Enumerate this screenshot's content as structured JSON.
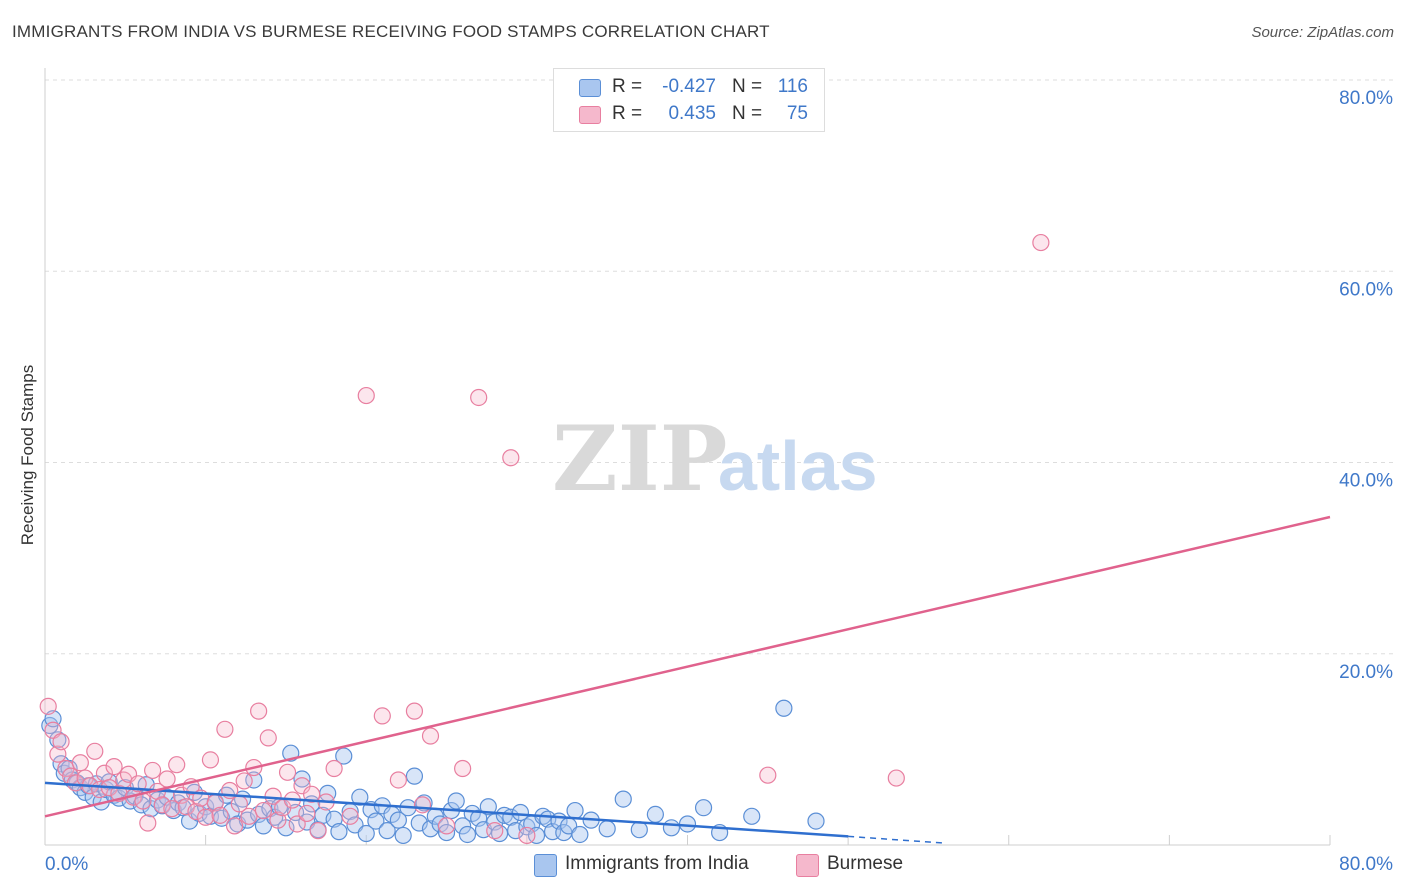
{
  "title": "IMMIGRANTS FROM INDIA VS BURMESE RECEIVING FOOD STAMPS CORRELATION CHART",
  "source": "Source: ZipAtlas.com",
  "stats": {
    "series1": {
      "r_label": "R =",
      "r_value": "-0.427",
      "n_label": "N =",
      "n_value": "116"
    },
    "series2": {
      "r_label": "R =",
      "r_value": "0.435",
      "n_label": "N =",
      "n_value": "75"
    }
  },
  "legend": {
    "series1": "Immigrants from India",
    "series2": "Burmese"
  },
  "colors": {
    "blue_fill": "#a9c6ef",
    "blue_stroke": "#5b8fd6",
    "blue_line": "#2f6fcf",
    "pink_fill": "#f5b8cc",
    "pink_stroke": "#e87fa0",
    "pink_line": "#e0628d",
    "tick_label": "#3f78c9",
    "grid": "#dddddd"
  },
  "chart_data": {
    "type": "scatter",
    "title": "IMMIGRANTS FROM INDIA VS BURMESE RECEIVING FOOD STAMPS CORRELATION CHART",
    "xlabel": "",
    "ylabel": "Receiving Food Stamps",
    "xlim": [
      0,
      80
    ],
    "ylim": [
      0,
      80
    ],
    "x_tick_labels": [
      "0.0%",
      "80.0%"
    ],
    "y_tick_labels": [
      "20.0%",
      "40.0%",
      "60.0%",
      "80.0%"
    ],
    "y_ticks": [
      20,
      40,
      60,
      80
    ],
    "grid": true,
    "legend_position": "bottom-center",
    "watermark": "ZIPatlas",
    "series": [
      {
        "name": "Immigrants from India",
        "color": "#a9c6ef",
        "trend": {
          "x": [
            0,
            50
          ],
          "y": [
            6.5,
            0.9
          ],
          "dashed_to": [
            56,
            0.2
          ]
        },
        "points": [
          [
            0.3,
            12.5
          ],
          [
            0.5,
            13.2
          ],
          [
            0.8,
            11.0
          ],
          [
            1.0,
            8.5
          ],
          [
            1.2,
            7.5
          ],
          [
            1.5,
            8.0
          ],
          [
            1.7,
            6.8
          ],
          [
            2.0,
            6.5
          ],
          [
            2.2,
            6.0
          ],
          [
            2.5,
            5.5
          ],
          [
            2.7,
            6.2
          ],
          [
            3.0,
            5.0
          ],
          [
            3.2,
            6.4
          ],
          [
            3.5,
            4.5
          ],
          [
            3.8,
            5.8
          ],
          [
            4.0,
            6.6
          ],
          [
            4.3,
            5.2
          ],
          [
            4.6,
            4.9
          ],
          [
            5.0,
            6.0
          ],
          [
            5.3,
            4.6
          ],
          [
            5.6,
            5.1
          ],
          [
            6.0,
            4.2
          ],
          [
            6.3,
            6.3
          ],
          [
            6.6,
            3.8
          ],
          [
            7.0,
            4.7
          ],
          [
            7.3,
            4.1
          ],
          [
            7.6,
            5.0
          ],
          [
            8.0,
            3.6
          ],
          [
            8.3,
            4.4
          ],
          [
            8.6,
            3.9
          ],
          [
            9.0,
            2.5
          ],
          [
            9.3,
            5.5
          ],
          [
            9.6,
            3.3
          ],
          [
            10.0,
            4.0
          ],
          [
            10.3,
            3.0
          ],
          [
            10.6,
            4.5
          ],
          [
            11.0,
            2.8
          ],
          [
            11.3,
            5.2
          ],
          [
            11.6,
            3.5
          ],
          [
            12.0,
            2.2
          ],
          [
            12.3,
            4.8
          ],
          [
            12.6,
            2.6
          ],
          [
            13.0,
            6.8
          ],
          [
            13.3,
            3.2
          ],
          [
            13.6,
            2.0
          ],
          [
            14.0,
            3.8
          ],
          [
            14.3,
            2.9
          ],
          [
            14.6,
            4.0
          ],
          [
            15.0,
            1.8
          ],
          [
            15.3,
            9.6
          ],
          [
            15.6,
            3.4
          ],
          [
            16.0,
            6.9
          ],
          [
            16.3,
            2.4
          ],
          [
            16.6,
            4.3
          ],
          [
            17.0,
            1.6
          ],
          [
            17.3,
            3.1
          ],
          [
            17.6,
            5.4
          ],
          [
            18.0,
            2.7
          ],
          [
            18.3,
            1.4
          ],
          [
            18.6,
            9.3
          ],
          [
            19.0,
            3.5
          ],
          [
            19.3,
            2.1
          ],
          [
            19.6,
            5.0
          ],
          [
            20.0,
            1.2
          ],
          [
            20.3,
            3.7
          ],
          [
            20.6,
            2.5
          ],
          [
            21.0,
            4.1
          ],
          [
            21.3,
            1.5
          ],
          [
            21.6,
            3.2
          ],
          [
            22.0,
            2.6
          ],
          [
            22.3,
            1.0
          ],
          [
            22.6,
            3.9
          ],
          [
            23.0,
            7.2
          ],
          [
            23.3,
            2.3
          ],
          [
            23.6,
            4.4
          ],
          [
            24.0,
            1.7
          ],
          [
            24.3,
            3.0
          ],
          [
            24.6,
            2.2
          ],
          [
            25.0,
            1.3
          ],
          [
            25.3,
            3.6
          ],
          [
            25.6,
            4.6
          ],
          [
            26.0,
            2.0
          ],
          [
            26.3,
            1.1
          ],
          [
            26.6,
            3.3
          ],
          [
            27.0,
            2.8
          ],
          [
            27.3,
            1.6
          ],
          [
            27.6,
            4.0
          ],
          [
            28.0,
            2.4
          ],
          [
            28.3,
            1.2
          ],
          [
            28.6,
            3.1
          ],
          [
            29.0,
            2.9
          ],
          [
            29.3,
            1.5
          ],
          [
            29.6,
            3.4
          ],
          [
            30.0,
            1.9
          ],
          [
            30.3,
            2.2
          ],
          [
            30.6,
            1.0
          ],
          [
            31.0,
            3.0
          ],
          [
            31.3,
            2.7
          ],
          [
            31.6,
            1.4
          ],
          [
            32.0,
            2.5
          ],
          [
            32.3,
            1.3
          ],
          [
            32.6,
            2.0
          ],
          [
            33.0,
            3.6
          ],
          [
            33.3,
            1.1
          ],
          [
            34.0,
            2.6
          ],
          [
            35.0,
            1.7
          ],
          [
            36.0,
            4.8
          ],
          [
            37.0,
            1.6
          ],
          [
            38.0,
            3.2
          ],
          [
            39.0,
            1.8
          ],
          [
            40.0,
            2.2
          ],
          [
            41.0,
            3.9
          ],
          [
            42.0,
            1.3
          ],
          [
            44.0,
            3.0
          ],
          [
            46.0,
            14.3
          ],
          [
            48.0,
            2.5
          ]
        ]
      },
      {
        "name": "Burmese",
        "color": "#f5b8cc",
        "trend": {
          "x": [
            0,
            80
          ],
          "y": [
            3.0,
            34.3
          ]
        },
        "points": [
          [
            0.2,
            14.5
          ],
          [
            0.5,
            12.0
          ],
          [
            0.8,
            9.5
          ],
          [
            1.0,
            10.8
          ],
          [
            1.3,
            8.0
          ],
          [
            1.6,
            7.2
          ],
          [
            1.9,
            6.5
          ],
          [
            2.2,
            8.6
          ],
          [
            2.5,
            7.0
          ],
          [
            2.8,
            6.2
          ],
          [
            3.1,
            9.8
          ],
          [
            3.4,
            5.8
          ],
          [
            3.7,
            7.5
          ],
          [
            4.0,
            6.0
          ],
          [
            4.3,
            8.2
          ],
          [
            4.6,
            5.4
          ],
          [
            4.9,
            6.8
          ],
          [
            5.2,
            7.4
          ],
          [
            5.5,
            5.0
          ],
          [
            5.8,
            6.4
          ],
          [
            6.1,
            4.6
          ],
          [
            6.4,
            2.3
          ],
          [
            6.7,
            7.8
          ],
          [
            7.0,
            5.6
          ],
          [
            7.3,
            4.2
          ],
          [
            7.6,
            6.9
          ],
          [
            7.9,
            3.8
          ],
          [
            8.2,
            8.4
          ],
          [
            8.5,
            5.2
          ],
          [
            8.8,
            4.0
          ],
          [
            9.1,
            6.1
          ],
          [
            9.4,
            3.5
          ],
          [
            9.7,
            4.9
          ],
          [
            10.0,
            2.9
          ],
          [
            10.3,
            8.9
          ],
          [
            10.6,
            4.4
          ],
          [
            10.9,
            3.1
          ],
          [
            11.2,
            12.1
          ],
          [
            11.5,
            5.7
          ],
          [
            11.8,
            2.0
          ],
          [
            12.1,
            4.3
          ],
          [
            12.4,
            6.7
          ],
          [
            12.7,
            3.0
          ],
          [
            13.0,
            8.1
          ],
          [
            13.3,
            14.0
          ],
          [
            13.6,
            3.6
          ],
          [
            13.9,
            11.2
          ],
          [
            14.2,
            5.1
          ],
          [
            14.5,
            2.6
          ],
          [
            14.8,
            3.9
          ],
          [
            15.1,
            7.6
          ],
          [
            15.4,
            4.7
          ],
          [
            15.7,
            2.2
          ],
          [
            16.0,
            6.2
          ],
          [
            16.3,
            3.3
          ],
          [
            16.6,
            5.3
          ],
          [
            17.0,
            1.5
          ],
          [
            17.5,
            4.5
          ],
          [
            18.0,
            8.0
          ],
          [
            19.0,
            3.0
          ],
          [
            20.0,
            47.0
          ],
          [
            21.0,
            13.5
          ],
          [
            22.0,
            6.8
          ],
          [
            23.0,
            14.0
          ],
          [
            23.5,
            4.2
          ],
          [
            24.0,
            11.4
          ],
          [
            25.0,
            2.0
          ],
          [
            26.0,
            8.0
          ],
          [
            27.0,
            46.8
          ],
          [
            28.0,
            1.5
          ],
          [
            29.0,
            40.5
          ],
          [
            30.0,
            1.0
          ],
          [
            45.0,
            7.3
          ],
          [
            53.0,
            7.0
          ],
          [
            62.0,
            63.0
          ]
        ]
      }
    ]
  }
}
